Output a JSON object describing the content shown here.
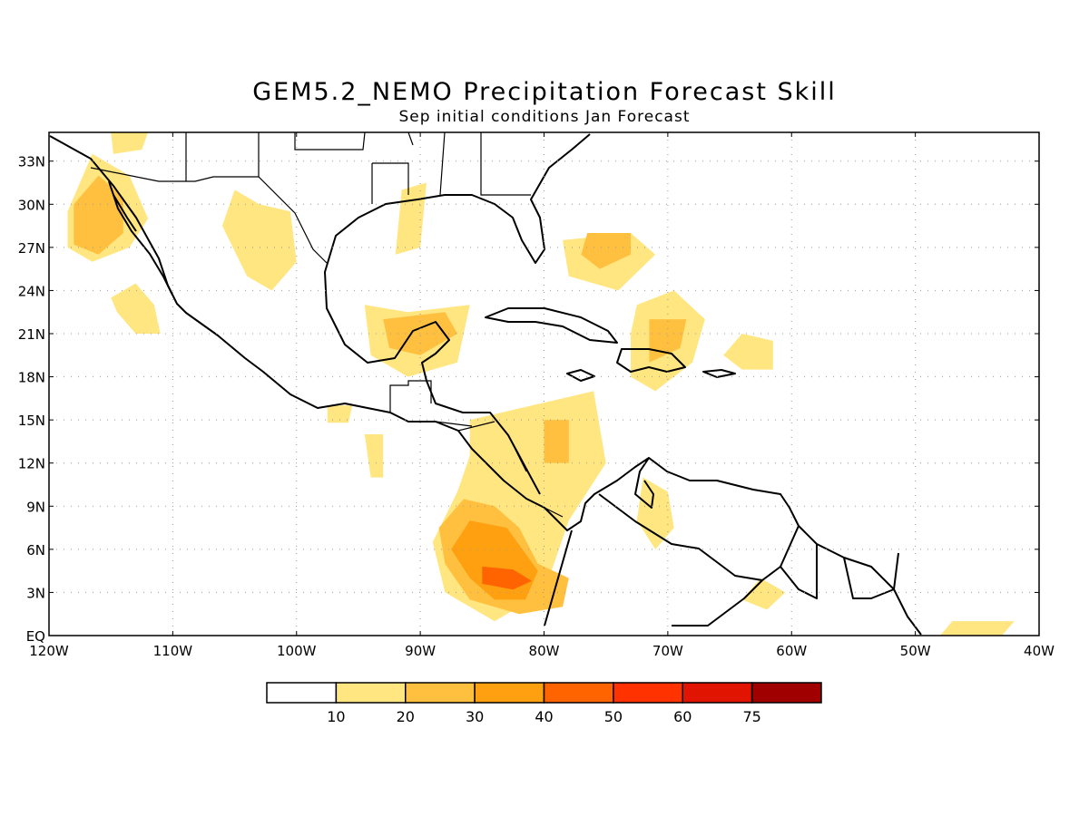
{
  "title": "GEM5.2_NEMO Precipitation Forecast Skill",
  "subtitle": "Sep initial conditions  Jan Forecast",
  "map": {
    "lon_range": [
      -120,
      -40
    ],
    "lat_range": [
      0,
      35
    ],
    "lat_labels": [
      {
        "lat": 33,
        "label": "33N"
      },
      {
        "lat": 30,
        "label": "30N"
      },
      {
        "lat": 27,
        "label": "27N"
      },
      {
        "lat": 24,
        "label": "24N"
      },
      {
        "lat": 21,
        "label": "21N"
      },
      {
        "lat": 18,
        "label": "18N"
      },
      {
        "lat": 15,
        "label": "15N"
      },
      {
        "lat": 12,
        "label": "12N"
      },
      {
        "lat": 9,
        "label": "9N"
      },
      {
        "lat": 6,
        "label": "6N"
      },
      {
        "lat": 3,
        "label": "3N"
      },
      {
        "lat": 0,
        "label": "EQ"
      }
    ],
    "lon_labels": [
      {
        "lon": -120,
        "label": "120W"
      },
      {
        "lon": -110,
        "label": "110W"
      },
      {
        "lon": -100,
        "label": "100W"
      },
      {
        "lon": -90,
        "label": "90W"
      },
      {
        "lon": -80,
        "label": "80W"
      },
      {
        "lon": -70,
        "label": "70W"
      },
      {
        "lon": -60,
        "label": "60W"
      },
      {
        "lon": -50,
        "label": "50W"
      },
      {
        "lon": -40,
        "label": "40W"
      }
    ],
    "grid": true
  },
  "colorbar": {
    "colors": [
      "#ffffff",
      "#ffe680",
      "#ffc040",
      "#ffa010",
      "#ff6400",
      "#ff3200",
      "#e01400",
      "#a00000"
    ],
    "labels": [
      "10",
      "20",
      "30",
      "40",
      "50",
      "60",
      "75"
    ]
  },
  "chart_data": {
    "type": "heatmap",
    "title": "GEM5.2_NEMO Precipitation Forecast Skill",
    "subtitle": "Sep initial conditions  Jan Forecast",
    "levels": [
      10,
      20,
      30,
      40,
      50,
      60,
      75
    ],
    "level_colors": [
      "#ffe680",
      "#ffc040",
      "#ffa010",
      "#ff6400",
      "#ff3200",
      "#e01400",
      "#a00000"
    ],
    "regions": [
      {
        "level": 10,
        "pts": [
          [
            -116.5,
            33.5
          ],
          [
            -113.5,
            32
          ],
          [
            -112,
            29
          ],
          [
            -113.5,
            27
          ],
          [
            -116.5,
            26
          ],
          [
            -118.5,
            27
          ],
          [
            -118.5,
            29.5
          ]
        ]
      },
      {
        "level": 20,
        "pts": [
          [
            -116,
            32
          ],
          [
            -114,
            30.5
          ],
          [
            -114,
            28
          ],
          [
            -116,
            26.5
          ],
          [
            -118,
            27.2
          ],
          [
            -118,
            30
          ]
        ]
      },
      {
        "level": 10,
        "pts": [
          [
            -115,
            35
          ],
          [
            -112,
            35
          ],
          [
            -112.5,
            33.8
          ],
          [
            -114.8,
            33.5
          ]
        ]
      },
      {
        "level": 10,
        "pts": [
          [
            -105,
            31
          ],
          [
            -103,
            30
          ],
          [
            -100.5,
            29.5
          ],
          [
            -100,
            26
          ],
          [
            -102,
            24
          ],
          [
            -104,
            25
          ],
          [
            -106,
            28.5
          ]
        ]
      },
      {
        "level": 10,
        "pts": [
          [
            -115,
            23.5
          ],
          [
            -113,
            24.5
          ],
          [
            -111.5,
            23
          ],
          [
            -111,
            21
          ],
          [
            -113,
            21
          ],
          [
            -114.5,
            22.5
          ]
        ]
      },
      {
        "level": 10,
        "pts": [
          [
            -91.5,
            31
          ],
          [
            -89.5,
            31.5
          ],
          [
            -90,
            27
          ],
          [
            -92,
            26.5
          ]
        ]
      },
      {
        "level": 10,
        "pts": [
          [
            -94.5,
            23
          ],
          [
            -91,
            22.5
          ],
          [
            -86,
            23
          ],
          [
            -87,
            19
          ],
          [
            -91,
            18
          ],
          [
            -94,
            19.5
          ]
        ]
      },
      {
        "level": 20,
        "pts": [
          [
            -93,
            22
          ],
          [
            -88,
            22.5
          ],
          [
            -87,
            21
          ],
          [
            -90,
            19.5
          ],
          [
            -92.5,
            20
          ]
        ]
      },
      {
        "level": 10,
        "pts": [
          [
            -97.5,
            16
          ],
          [
            -95.5,
            16
          ],
          [
            -95.8,
            14.8
          ],
          [
            -97.5,
            14.8
          ]
        ]
      },
      {
        "level": 10,
        "pts": [
          [
            -94.5,
            14
          ],
          [
            -93,
            14
          ],
          [
            -93,
            11
          ],
          [
            -94,
            11
          ]
        ]
      },
      {
        "level": 10,
        "pts": [
          [
            -78.5,
            27.5
          ],
          [
            -73,
            28
          ],
          [
            -71,
            26.5
          ],
          [
            -74,
            24
          ],
          [
            -78,
            25
          ]
        ]
      },
      {
        "level": 20,
        "pts": [
          [
            -76.5,
            28
          ],
          [
            -73,
            28
          ],
          [
            -73,
            26.5
          ],
          [
            -75.5,
            25.5
          ],
          [
            -77,
            26.5
          ]
        ]
      },
      {
        "level": 10,
        "pts": [
          [
            -72.5,
            23
          ],
          [
            -69.5,
            24
          ],
          [
            -67,
            22
          ],
          [
            -68,
            19
          ],
          [
            -71,
            17
          ],
          [
            -73,
            18
          ],
          [
            -73,
            21
          ]
        ]
      },
      {
        "level": 20,
        "pts": [
          [
            -71.5,
            22
          ],
          [
            -68.5,
            22
          ],
          [
            -69,
            20
          ],
          [
            -71.5,
            19
          ]
        ]
      },
      {
        "level": 10,
        "pts": [
          [
            -64,
            21
          ],
          [
            -61.5,
            20.5
          ],
          [
            -61.5,
            18.5
          ],
          [
            -64,
            18.5
          ],
          [
            -65.5,
            19.5
          ]
        ]
      },
      {
        "level": 10,
        "pts": [
          [
            -86,
            15
          ],
          [
            -81,
            16
          ],
          [
            -78.5,
            16.5
          ],
          [
            -76,
            17
          ],
          [
            -75,
            12
          ],
          [
            -78,
            8
          ],
          [
            -80,
            3
          ],
          [
            -84,
            1
          ],
          [
            -88,
            3
          ],
          [
            -89,
            6.5
          ],
          [
            -87,
            10
          ],
          [
            -86,
            12.5
          ]
        ]
      },
      {
        "level": 20,
        "pts": [
          [
            -86.5,
            9.5
          ],
          [
            -84,
            9
          ],
          [
            -82,
            7.5
          ],
          [
            -80.5,
            5
          ],
          [
            -78,
            4
          ],
          [
            -78.5,
            2
          ],
          [
            -82,
            1.5
          ],
          [
            -86,
            2.5
          ],
          [
            -88,
            5
          ],
          [
            -88.5,
            7.5
          ]
        ]
      },
      {
        "level": 30,
        "pts": [
          [
            -86,
            8
          ],
          [
            -83,
            7.5
          ],
          [
            -80.5,
            4.5
          ],
          [
            -81.5,
            2.5
          ],
          [
            -84,
            2.5
          ],
          [
            -86,
            4
          ],
          [
            -87.5,
            6
          ]
        ]
      },
      {
        "level": 40,
        "pts": [
          [
            -85,
            4.8
          ],
          [
            -82.5,
            4.6
          ],
          [
            -81,
            3.8
          ],
          [
            -82.5,
            3.2
          ],
          [
            -85,
            3.6
          ]
        ]
      },
      {
        "level": 20,
        "pts": [
          [
            -80,
            15
          ],
          [
            -78,
            15
          ],
          [
            -78,
            12
          ],
          [
            -80,
            12
          ]
        ]
      },
      {
        "level": 10,
        "pts": [
          [
            -72,
            11
          ],
          [
            -70,
            10
          ],
          [
            -69.5,
            7.5
          ],
          [
            -71,
            6
          ],
          [
            -72.5,
            8
          ]
        ]
      },
      {
        "level": 10,
        "pts": [
          [
            -62.5,
            4
          ],
          [
            -60.5,
            3
          ],
          [
            -62,
            1.8
          ],
          [
            -64,
            2.5
          ]
        ]
      },
      {
        "level": 10,
        "pts": [
          [
            -47,
            1
          ],
          [
            -42,
            1
          ],
          [
            -43,
            0
          ],
          [
            -48,
            0
          ]
        ]
      }
    ]
  }
}
